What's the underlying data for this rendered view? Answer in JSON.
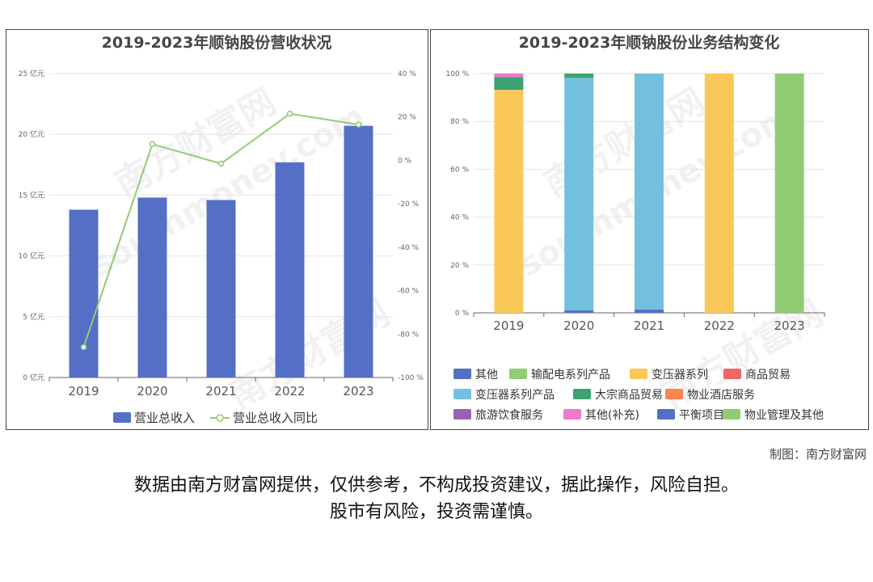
{
  "footer": {
    "credit": "制图：南方财富网",
    "disclaimer_line1": "数据由南方财富网提供，仅供参考，不构成投资建议，据此操作，风险自担。",
    "disclaimer_line2": "股市有风险，投资需谨慎。"
  },
  "watermark": {
    "cn": "南方财富网",
    "en": "southmoney.com"
  },
  "colors": {
    "bar": "#5470c6",
    "line": "#91cc75",
    "grid": "#e6e6e6",
    "axis_text": "#666666",
    "title": "#464646"
  },
  "chart_data": [
    {
      "type": "bar",
      "title": "2019-2023年顺钠股份营收状况",
      "categories": [
        "2019",
        "2020",
        "2021",
        "2022",
        "2023"
      ],
      "y_left": {
        "ylim": [
          0,
          25
        ],
        "ticks": [
          0,
          5,
          10,
          15,
          20,
          25
        ],
        "tick_labels": [
          "0 亿元",
          "5 亿元",
          "10 亿元",
          "15 亿元",
          "20 亿元",
          "25 亿元"
        ]
      },
      "y_right": {
        "ylim": [
          -100,
          40
        ],
        "ticks": [
          -100,
          -80,
          -60,
          -40,
          -20,
          0,
          20,
          40
        ],
        "tick_labels": [
          "-100 %",
          "-80 %",
          "-60 %",
          "-40 %",
          "-20 %",
          "0 %",
          "20 %",
          "40 %"
        ]
      },
      "series": [
        {
          "name": "营业总收入",
          "type": "bar",
          "axis": "left",
          "values": [
            13.8,
            14.8,
            14.6,
            17.7,
            20.7
          ]
        },
        {
          "name": "营业总收入同比",
          "type": "line",
          "axis": "right",
          "values": [
            -86,
            7.5,
            -1.5,
            21.5,
            16.5
          ]
        }
      ],
      "legend": "bottom-center",
      "grid": true
    },
    {
      "type": "bar",
      "stacked": true,
      "title": "2019-2023年顺钠股份业务结构变化",
      "categories": [
        "2019",
        "2020",
        "2021",
        "2022",
        "2023"
      ],
      "ylim": [
        0,
        100
      ],
      "y_ticks": [
        0,
        20,
        40,
        60,
        80,
        100
      ],
      "y_tick_labels": [
        "0 %",
        "20 %",
        "40 %",
        "60 %",
        "80 %",
        "100 %"
      ],
      "series": [
        {
          "name": "其他",
          "color": "#5470c6",
          "values": [
            0,
            0,
            0,
            0,
            0
          ]
        },
        {
          "name": "输配电系列产品",
          "color": "#91cc75",
          "values": [
            0,
            0,
            0,
            0,
            0
          ]
        },
        {
          "name": "变压器系列",
          "color": "#fac858",
          "values": [
            93.2,
            0,
            0,
            100,
            0
          ]
        },
        {
          "name": "商品贸易",
          "color": "#ee6666",
          "values": [
            0,
            0,
            0,
            0,
            0
          ]
        },
        {
          "name": "变压器系列产品",
          "color": "#73c0de",
          "values": [
            0,
            97.2,
            98.6,
            0,
            0
          ]
        },
        {
          "name": "大宗商品贸易",
          "color": "#3ba272",
          "values": [
            5.3,
            1.8,
            0,
            0,
            0
          ]
        },
        {
          "name": "物业酒店服务",
          "color": "#fc8452",
          "values": [
            0,
            0,
            0,
            0,
            0
          ]
        },
        {
          "name": "旅游饮食服务",
          "color": "#9a60b4",
          "values": [
            0,
            0,
            0,
            0,
            0
          ]
        },
        {
          "name": "其他(补充)",
          "color": "#ea7ccc",
          "values": [
            1.5,
            0,
            0,
            0,
            0
          ]
        },
        {
          "name": "平衡项目",
          "color": "#5470c6",
          "values": [
            0,
            1.0,
            1.4,
            0,
            0
          ]
        },
        {
          "name": "物业管理及其他",
          "color": "#91cc75",
          "values": [
            0,
            0,
            0,
            0,
            100
          ]
        }
      ],
      "legend": "bottom",
      "grid": true
    }
  ]
}
